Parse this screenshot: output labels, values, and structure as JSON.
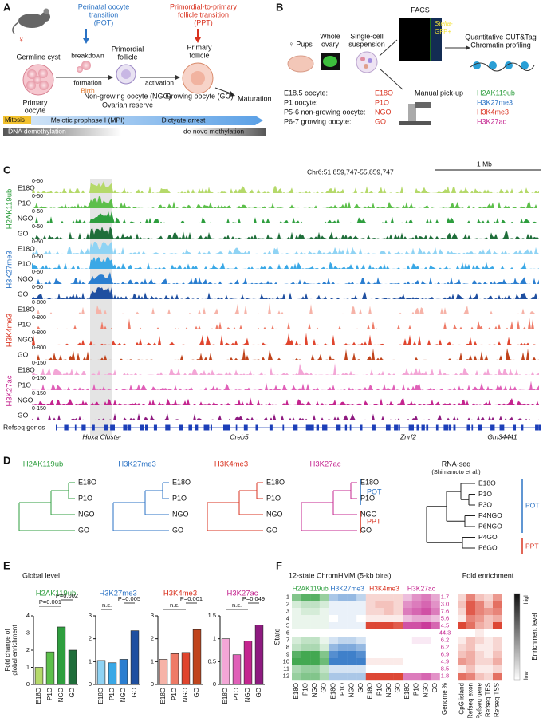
{
  "panel_labels": [
    "A",
    "B",
    "C",
    "D",
    "E",
    "F"
  ],
  "stages": [
    "E18O",
    "P1O",
    "NGO",
    "GO"
  ],
  "marks": [
    {
      "name": "H2AK119ub",
      "color": "#2e9e3e",
      "shades": [
        "#b5d96a",
        "#5cbf4a",
        "#2e9e3e",
        "#1f6e3a"
      ]
    },
    {
      "name": "H3K27me3",
      "color": "#2a72c4",
      "shades": [
        "#8fd3f4",
        "#3aa8e6",
        "#2a7ed0",
        "#1f4fa0"
      ]
    },
    {
      "name": "H3K4me3",
      "color": "#d9321f",
      "shades": [
        "#f6b3a8",
        "#ee7a66",
        "#e0452e",
        "#c0441c"
      ]
    },
    {
      "name": "H3K27ac",
      "color": "#c4258f",
      "shades": [
        "#f3a6d6",
        "#e060b8",
        "#c4258f",
        "#8e1a80"
      ]
    }
  ],
  "a": {
    "female": "♀",
    "pot": [
      "Perinatal oocyte",
      "transition",
      "(POT)"
    ],
    "ppt": [
      "Primordial-to-primary",
      "follicle transition",
      "(PPT)"
    ],
    "germline_cyst": "Germline cyst",
    "primordial_follicle": [
      "Primordial",
      "follicle"
    ],
    "primary_follicle": [
      "Primary",
      "follicle"
    ],
    "breakdown": "breakdown",
    "formation": "formation",
    "birth": "Birth",
    "activation": "activation",
    "primary_oocyte": [
      "Primary",
      "oocyte"
    ],
    "ngo": "Non-growing oocyte (NGO)",
    "ovarian_reserve": "Ovarian reserve",
    "go": "Growing oocyte (GO)",
    "maturation": "Maturation",
    "mitosis": "Mitosis",
    "mpi": "Meiotic prophase I (MPI)",
    "dictyate": "Dictyate arrest",
    "demethylation": "DNA demethylation",
    "de_novo": "de novo methylation"
  },
  "b": {
    "pups": "♀ Pups",
    "whole_ovary": [
      "Whole",
      "ovary"
    ],
    "suspension": [
      "Single-cell",
      "suspension"
    ],
    "facs": "FACS",
    "gfp": [
      "Stella-",
      "GFP+"
    ],
    "cut_tag": [
      "Quantitative CUT&Tag",
      "Chromatin profiling"
    ],
    "pickup": "Manual pick-up",
    "stage_list": [
      {
        "label": "E18.5 oocyte:",
        "code": "E18O"
      },
      {
        "label": "P1 oocyte:",
        "code": "P1O"
      },
      {
        "label": "P5-6 non-growing oocyte:",
        "code": "NGO"
      },
      {
        "label": "P6-7 growing oocyte:",
        "code": "GO"
      }
    ]
  },
  "c": {
    "coordinates": "Chr6:51,859,747-55,859,747",
    "scale_bar": "1 Mb",
    "track_ranges": [
      "0-50",
      "0-50",
      "0-800",
      "0-150"
    ],
    "genes_label": "Refseq genes",
    "genes": [
      "Hoxa Cluster",
      "Creb5",
      "Znrf2",
      "Gm34441"
    ]
  },
  "d": {
    "groups": [
      "POT",
      "PPT"
    ],
    "rna_title": "RNA-seq",
    "rna_source": "(Shimamoto et al.)",
    "rna_leaves": [
      "E18O",
      "P1O",
      "P3O",
      "P4NGO",
      "P6NGO",
      "P4GO",
      "P6GO"
    ]
  },
  "e": {
    "title": "Global level",
    "y_label": [
      "Fold change of",
      "global enrichment"
    ],
    "charts": [
      {
        "type": "bar",
        "values": [
          1.0,
          1.9,
          3.35,
          2.0
        ],
        "ylim": [
          0,
          4
        ],
        "yticks": [
          0,
          1,
          2,
          3,
          4
        ],
        "annotations": [
          "P=0.001",
          "P=0.002"
        ]
      },
      {
        "type": "bar",
        "values": [
          1.05,
          0.95,
          1.1,
          2.35
        ],
        "ylim": [
          0,
          3
        ],
        "yticks": [
          0,
          1,
          2,
          3
        ],
        "annotations": [
          "n.s.",
          "P=0.005"
        ]
      },
      {
        "type": "bar",
        "values": [
          1.1,
          1.35,
          1.4,
          2.4
        ],
        "ylim": [
          0,
          3
        ],
        "yticks": [
          0,
          1,
          2,
          3
        ],
        "annotations": [
          "n.s.",
          "P=0.001"
        ]
      },
      {
        "type": "bar",
        "values": [
          1.0,
          0.65,
          0.95,
          1.3
        ],
        "ylim": [
          0,
          1.5
        ],
        "yticks": [
          0,
          0.5,
          1,
          1.5
        ],
        "annotations": [
          "n.s.",
          "P=0.049"
        ]
      }
    ]
  },
  "f": {
    "title": "12-state ChromHMM (5-kb bins)",
    "fold_title": "Fold enrichment",
    "state_label": "State",
    "states": [
      "1",
      "2",
      "3",
      "4",
      "5",
      "6",
      "7",
      "8",
      "9",
      "10",
      "11",
      "12"
    ],
    "genome_label": "Genome %",
    "genome_pct": [
      "1.7",
      "3.0",
      "7.6",
      "5.6",
      "4.5",
      "44.3",
      "6.2",
      "6.2",
      "6.9",
      "4.9",
      "8.5",
      "1.8"
    ],
    "fold_columns": [
      "CpG island",
      "Refseq exon",
      "Refseq gene",
      "Refseq TES",
      "Refseq TSS"
    ],
    "fold_color": "#d9321f",
    "legend_title": "Enrichment level",
    "legend_high": "high",
    "legend_low": "low",
    "levels": [
      [
        [
          0.6,
          0.8,
          0.8,
          0.5
        ],
        [
          0.4,
          0.5,
          0.5,
          0.3
        ],
        [
          0.2,
          0.2,
          0.2,
          0.2
        ],
        [
          0.3,
          0.5,
          0.6,
          0.4
        ]
      ],
      [
        [
          0.2,
          0.3,
          0.3,
          0.2
        ],
        [
          0.1,
          0.1,
          0.1,
          0.1
        ],
        [
          0.2,
          0.3,
          0.3,
          0.2
        ],
        [
          0.5,
          0.6,
          0.7,
          0.5
        ]
      ],
      [
        [
          0.1,
          0.2,
          0.2,
          0.1
        ],
        [
          0.1,
          0.1,
          0.1,
          0.1
        ],
        [
          0.2,
          0.2,
          0.3,
          0.2
        ],
        [
          0.6,
          0.7,
          0.8,
          0.6
        ]
      ],
      [
        [
          0.1,
          0.1,
          0.1,
          0.1
        ],
        [
          0.0,
          0.1,
          0.1,
          0.0
        ],
        [
          0.1,
          0.1,
          0.1,
          0.1
        ],
        [
          0.3,
          0.4,
          0.4,
          0.3
        ]
      ],
      [
        [
          0.1,
          0.1,
          0.1,
          0.1
        ],
        [
          0.1,
          0.1,
          0.1,
          0.1
        ],
        [
          0.9,
          0.9,
          0.9,
          0.8
        ],
        [
          0.8,
          0.8,
          0.9,
          0.7
        ]
      ],
      [
        [
          0.0,
          0.0,
          0.0,
          0.0
        ],
        [
          0.0,
          0.0,
          0.0,
          0.0
        ],
        [
          0.0,
          0.0,
          0.0,
          0.0
        ],
        [
          0.0,
          0.0,
          0.0,
          0.0
        ]
      ],
      [
        [
          0.2,
          0.3,
          0.3,
          0.1
        ],
        [
          0.2,
          0.3,
          0.3,
          0.2
        ],
        [
          0.0,
          0.0,
          0.0,
          0.0
        ],
        [
          0.0,
          0.1,
          0.1,
          0.0
        ]
      ],
      [
        [
          0.3,
          0.4,
          0.4,
          0.2
        ],
        [
          0.5,
          0.6,
          0.6,
          0.5
        ],
        [
          0.0,
          0.0,
          0.0,
          0.0
        ],
        [
          0.0,
          0.0,
          0.0,
          0.0
        ]
      ],
      [
        [
          0.8,
          0.9,
          0.9,
          0.6
        ],
        [
          0.8,
          0.9,
          0.9,
          0.8
        ],
        [
          0.0,
          0.0,
          0.0,
          0.0
        ],
        [
          0.0,
          0.0,
          0.0,
          0.0
        ]
      ],
      [
        [
          0.9,
          0.9,
          0.9,
          0.7
        ],
        [
          0.9,
          0.9,
          0.9,
          0.9
        ],
        [
          0.1,
          0.1,
          0.1,
          0.1
        ],
        [
          0.0,
          0.0,
          0.0,
          0.0
        ]
      ],
      [
        [
          0.4,
          0.5,
          0.5,
          0.3
        ],
        [
          0.2,
          0.2,
          0.2,
          0.2
        ],
        [
          0.0,
          0.0,
          0.0,
          0.0
        ],
        [
          0.0,
          0.0,
          0.0,
          0.0
        ]
      ],
      [
        [
          0.5,
          0.6,
          0.6,
          0.4
        ],
        [
          0.4,
          0.4,
          0.4,
          0.4
        ],
        [
          0.9,
          0.9,
          0.9,
          0.9
        ],
        [
          0.6,
          0.6,
          0.7,
          0.5
        ]
      ]
    ],
    "fold_levels": [
      [
        0.2,
        0.6,
        0.3,
        0.2,
        0.5
      ],
      [
        0.3,
        0.8,
        0.6,
        0.3,
        0.7
      ],
      [
        0.2,
        0.8,
        0.6,
        0.5,
        0.6
      ],
      [
        0.1,
        0.6,
        0.5,
        0.3,
        0.4
      ],
      [
        0.9,
        0.7,
        0.4,
        0.3,
        0.9
      ],
      [
        0.0,
        0.0,
        0.1,
        0.0,
        0.0
      ],
      [
        0.1,
        0.3,
        0.2,
        0.1,
        0.2
      ],
      [
        0.2,
        0.3,
        0.1,
        0.1,
        0.2
      ],
      [
        0.3,
        0.4,
        0.2,
        0.1,
        0.3
      ],
      [
        0.5,
        0.4,
        0.2,
        0.2,
        0.4
      ],
      [
        0.1,
        0.3,
        0.1,
        0.1,
        0.2
      ],
      [
        0.7,
        0.6,
        0.3,
        0.2,
        0.7
      ]
    ]
  }
}
